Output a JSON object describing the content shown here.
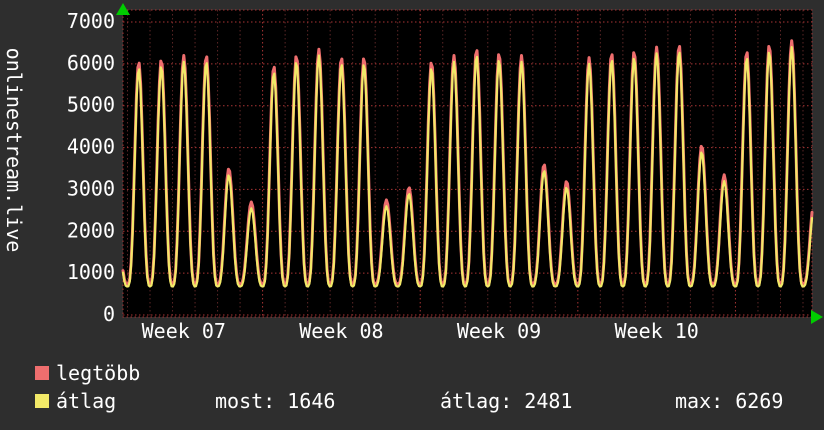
{
  "chart_data": {
    "type": "line",
    "title": "onlinestream.live",
    "xlabel": "",
    "ylabel": "",
    "ylim": [
      0,
      7000
    ],
    "yticks": [
      0,
      1000,
      2000,
      3000,
      4000,
      5000,
      6000,
      7000
    ],
    "xtick_labels": [
      "Week 07",
      "Week 08",
      "Week 09",
      "Week 10"
    ],
    "x_days_visible": 30.6,
    "day_offset": 0.2,
    "week_boundaries": [
      6,
      13,
      20,
      27
    ],
    "week_label_center_day": 2.7,
    "edge_peak_left": 2500,
    "grid": true,
    "legend_position": "bottom-left",
    "series": [
      {
        "name": "legtöbb",
        "color": "#ee6e6e",
        "width": 3,
        "base": 740,
        "day_peaks": [
          6050,
          6100,
          6200,
          6200,
          3500,
          2700,
          5950,
          6200,
          6350,
          6150,
          6150,
          2750,
          3050,
          6050,
          6200,
          6350,
          6250,
          6200,
          3600,
          3200,
          6150,
          6250,
          6300,
          6400,
          6450,
          4050,
          3350,
          6300,
          6450,
          6550,
          2750
        ]
      },
      {
        "name": "átlag",
        "color": "#f2e968",
        "width": 2.2,
        "base": 680,
        "day_peaks": [
          5900,
          5950,
          6050,
          6050,
          3350,
          2550,
          5800,
          6050,
          6200,
          6000,
          6000,
          2600,
          2900,
          5900,
          6050,
          6200,
          6100,
          6050,
          3450,
          3050,
          6000,
          6100,
          6150,
          6250,
          6300,
          3900,
          3200,
          6150,
          6300,
          6400,
          2600
        ]
      }
    ],
    "colors": {
      "canvas_bg": "#2e2e2e",
      "plot_bg": "#000000",
      "grid_major": "#a83434",
      "grid_minor": "#5c2626",
      "text": "#ffffff",
      "arrow": "#00cc00"
    }
  },
  "stats": [
    {
      "label": "most:",
      "value": "1646"
    },
    {
      "label": "átlag:",
      "value": "2481"
    },
    {
      "label": "max:",
      "value": "6269"
    }
  ]
}
